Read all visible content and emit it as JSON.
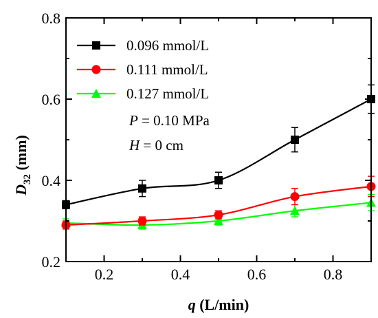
{
  "chart_data": {
    "type": "line",
    "xlabel_var": "q",
    "xlabel_unit": " (L/min)",
    "ylabel_var": "D",
    "ylabel_sub": "32",
    "ylabel_unit": " (mm)",
    "xlim": [
      0.1,
      0.9
    ],
    "ylim": [
      0.2,
      0.8
    ],
    "xticks": [
      0.2,
      0.4,
      0.6,
      0.8
    ],
    "xtick_labels": [
      "0.2",
      "0.4",
      "0.6",
      "0.8"
    ],
    "yticks": [
      0.2,
      0.4,
      0.6,
      0.8
    ],
    "ytick_labels": [
      "0.2",
      "0.4",
      "0.6",
      "0.8"
    ],
    "grid": false,
    "legend_position": "top-left",
    "series": [
      {
        "name": "0.096 mmol/L",
        "color": "#000000",
        "marker": "square",
        "x": [
          0.1,
          0.3,
          0.5,
          0.7,
          0.9
        ],
        "y": [
          0.34,
          0.38,
          0.4,
          0.5,
          0.6
        ],
        "err": [
          0.01,
          0.02,
          0.02,
          0.03,
          0.035
        ]
      },
      {
        "name": "0.111 mmol/L",
        "color": "#ff0000",
        "marker": "circle",
        "x": [
          0.1,
          0.3,
          0.5,
          0.7,
          0.9
        ],
        "y": [
          0.29,
          0.3,
          0.315,
          0.36,
          0.385
        ],
        "err": [
          0.01,
          0.01,
          0.01,
          0.02,
          0.025
        ]
      },
      {
        "name": "0.127 mmol/L",
        "color": "#00ff00",
        "marker": "triangle",
        "x": [
          0.1,
          0.3,
          0.5,
          0.7,
          0.9
        ],
        "y": [
          0.295,
          0.29,
          0.3,
          0.325,
          0.345
        ],
        "err": [
          0.01,
          0.01,
          0.01,
          0.015,
          0.02
        ]
      }
    ],
    "annotations": [
      {
        "var": "P",
        "text": " = 0.10 MPa"
      },
      {
        "var": "H",
        "text": " = 0 cm"
      }
    ]
  }
}
